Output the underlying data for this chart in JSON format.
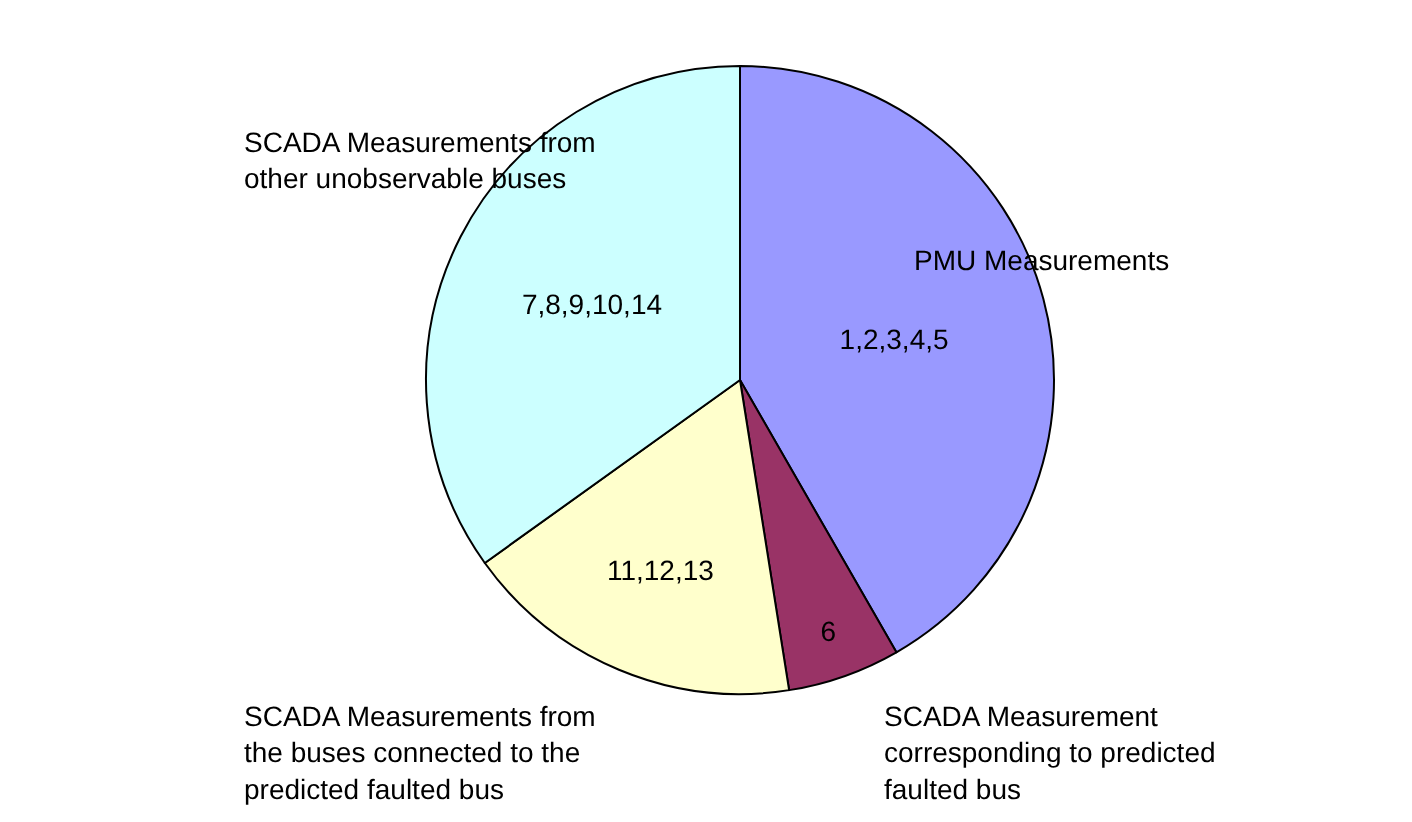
{
  "chart_data": {
    "type": "pie",
    "categories": [
      "PMU Measurements",
      "SCADA Measurement\ncorresponding to predicted\nfaulted bus",
      "SCADA Measurements from\nthe buses connected to the\npredicted faulted bus",
      "SCADA Measurements from\nother unobservable buses"
    ],
    "values": [
      41.7,
      5.8,
      17.6,
      34.9
    ],
    "value_labels": [
      "1,2,3,4,5",
      "6",
      "11,12,13",
      "7,8,9,10,14"
    ],
    "colors": [
      "#9999ff",
      "#993366",
      "#ffffcc",
      "#ccffff"
    ],
    "legend": false
  }
}
